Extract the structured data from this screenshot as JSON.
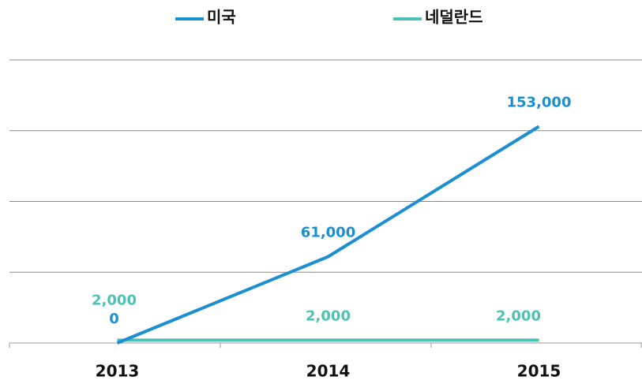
{
  "chart_data": {
    "type": "line",
    "categories": [
      "2013",
      "2014",
      "2015"
    ],
    "series": [
      {
        "name": "미국",
        "color": "#1b8fd2",
        "values": [
          0,
          61000,
          153000
        ],
        "value_labels": [
          "0",
          "61,000",
          "153,000"
        ]
      },
      {
        "name": "네덜란드",
        "color": "#4cc1b4",
        "values": [
          2000,
          2000,
          2000
        ],
        "value_labels": [
          "2,000",
          "2,000",
          "2,000"
        ]
      }
    ],
    "ylim": [
      0,
      200000
    ],
    "yticks": [
      0,
      50000,
      100000,
      150000,
      200000
    ],
    "grid": true,
    "legend": "top"
  }
}
